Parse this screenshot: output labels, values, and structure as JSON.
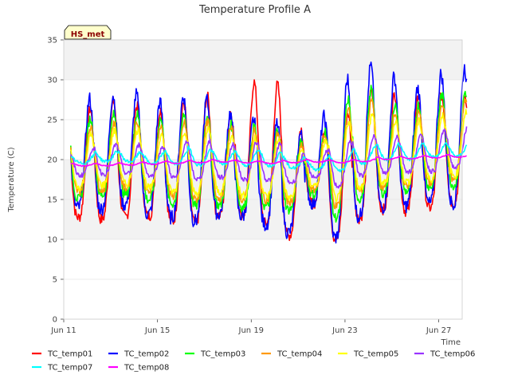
{
  "chart_data": {
    "type": "line",
    "title": "Temperature Profile A",
    "xlabel": "Time",
    "ylabel": "Temperature (C)",
    "ylim": [
      0,
      35
    ],
    "yticks": [
      0,
      5,
      10,
      15,
      20,
      25,
      30,
      35
    ],
    "x_start": "Jun 11",
    "x_end": "Jun 28",
    "xlim_days": [
      0,
      17
    ],
    "xticks": [
      {
        "label": "Jun 11",
        "day": 0
      },
      {
        "label": "Jun 15",
        "day": 4
      },
      {
        "label": "Jun 19",
        "day": 8
      },
      {
        "label": "Jun 23",
        "day": 12
      },
      {
        "label": "Jun 27",
        "day": 16
      }
    ],
    "grid": "horizontal bands",
    "legend_position": "bottom",
    "annotation": "HS_met",
    "daily_mean_ranges": {
      "days": [
        "Jun 11",
        "Jun 12",
        "Jun 13",
        "Jun 14",
        "Jun 15",
        "Jun 16",
        "Jun 17",
        "Jun 18",
        "Jun 19",
        "Jun 20",
        "Jun 21",
        "Jun 22",
        "Jun 23",
        "Jun 24",
        "Jun 25",
        "Jun 26",
        "Jun 27"
      ],
      "day_start": 0.3,
      "TC_temp01_min": [
        12.8,
        12.5,
        12.8,
        13.0,
        12.2,
        12.0,
        13.0,
        13.2,
        12.2,
        10.0,
        15.0,
        9.8,
        12.5,
        13.8,
        13.5,
        13.9,
        14.5
      ],
      "TC_temp01_max": [
        26.0,
        27.5,
        27.0,
        26.0,
        26.5,
        29.0,
        25.0,
        29.2,
        31.2,
        24.0,
        23.5,
        25.0,
        28.5,
        28.5,
        27.5,
        28.0,
        28.0
      ],
      "TC_temp02_min": [
        14.0,
        13.8,
        14.5,
        13.2,
        12.8,
        12.2,
        13.2,
        13.0,
        12.0,
        10.5,
        15.0,
        10.0,
        12.8,
        14.0,
        14.2,
        14.5,
        14.6
      ],
      "TC_temp02_max": [
        27.5,
        28.0,
        28.5,
        27.0,
        28.0,
        28.0,
        26.0,
        25.0,
        25.0,
        23.0,
        24.0,
        29.5,
        32.0,
        31.0,
        28.5,
        30.5,
        31.5
      ],
      "TC_temp03_min": [
        15.0,
        15.5,
        15.8,
        15.0,
        14.5,
        14.2,
        14.3,
        14.0,
        14.2,
        13.5,
        16.0,
        12.5,
        15.0,
        15.8,
        16.0,
        16.5,
        16.8
      ],
      "TC_temp03_max": [
        25.0,
        25.5,
        26.0,
        25.0,
        25.5,
        26.0,
        24.5,
        24.0,
        24.5,
        22.0,
        22.5,
        27.0,
        29.5,
        27.0,
        26.5,
        28.0,
        28.5
      ],
      "TC_temp04_min": [
        16.0,
        16.2,
        16.5,
        16.0,
        15.5,
        15.0,
        15.2,
        15.0,
        15.0,
        14.5,
        16.5,
        14.0,
        16.0,
        16.5,
        16.8,
        17.0,
        17.5
      ],
      "TC_temp04_max": [
        24.0,
        24.5,
        25.0,
        24.0,
        24.5,
        25.0,
        24.0,
        23.5,
        24.0,
        21.5,
        22.0,
        26.0,
        28.0,
        26.0,
        25.5,
        27.0,
        27.5
      ],
      "TC_temp05_min": [
        16.5,
        16.8,
        17.0,
        16.5,
        16.0,
        15.8,
        16.0,
        15.5,
        15.5,
        15.0,
        17.0,
        15.0,
        16.5,
        17.0,
        17.2,
        17.5,
        18.0
      ],
      "TC_temp05_max": [
        23.0,
        23.5,
        24.0,
        23.0,
        23.5,
        24.0,
        23.0,
        22.5,
        23.0,
        21.0,
        21.5,
        24.5,
        26.0,
        25.0,
        24.5,
        25.5,
        26.0
      ],
      "TC_temp06_min": [
        18.0,
        18.2,
        18.3,
        18.0,
        17.8,
        17.5,
        17.8,
        17.5,
        17.5,
        17.0,
        18.0,
        16.5,
        18.0,
        18.3,
        18.5,
        18.5,
        19.0
      ],
      "TC_temp06_max": [
        21.0,
        21.8,
        22.0,
        21.5,
        22.0,
        22.5,
        21.8,
        22.0,
        22.5,
        20.5,
        20.5,
        22.0,
        23.0,
        23.0,
        22.8,
        23.5,
        24.0
      ],
      "TC_temp07_min": [
        19.5,
        19.8,
        19.8,
        19.5,
        19.5,
        19.3,
        19.5,
        19.3,
        19.3,
        19.0,
        18.8,
        18.5,
        19.5,
        20.0,
        20.0,
        20.3,
        20.5
      ],
      "TC_temp07_max": [
        20.2,
        21.0,
        21.0,
        20.8,
        21.0,
        21.5,
        21.0,
        21.0,
        21.3,
        20.5,
        20.0,
        20.5,
        21.5,
        22.0,
        21.8,
        22.0,
        22.0
      ],
      "TC_temp08_min": [
        19.2,
        19.2,
        19.3,
        19.4,
        19.5,
        19.6,
        19.7,
        19.6,
        19.5,
        19.6,
        19.7,
        19.6,
        19.7,
        20.0,
        20.1,
        20.2,
        20.3
      ],
      "TC_temp08_max": [
        19.5,
        19.5,
        19.6,
        19.7,
        19.8,
        19.9,
        20.0,
        19.9,
        19.8,
        19.9,
        20.0,
        19.9,
        20.0,
        20.3,
        20.4,
        20.5,
        20.6
      ]
    },
    "series": [
      {
        "name": "TC_temp01",
        "color": "#ff0000",
        "phase": 0.62,
        "jitter": 0.7
      },
      {
        "name": "TC_temp02",
        "color": "#0000ff",
        "phase": 0.6,
        "jitter": 0.9
      },
      {
        "name": "TC_temp03",
        "color": "#00ff00",
        "phase": 0.63,
        "jitter": 0.6
      },
      {
        "name": "TC_temp04",
        "color": "#ff9900",
        "phase": 0.64,
        "jitter": 0.5
      },
      {
        "name": "TC_temp05",
        "color": "#ffff00",
        "phase": 0.66,
        "jitter": 0.5
      },
      {
        "name": "TC_temp06",
        "color": "#9933ff",
        "phase": 0.72,
        "jitter": 0.3
      },
      {
        "name": "TC_temp07",
        "color": "#00ffff",
        "phase": 0.8,
        "jitter": 0.2
      },
      {
        "name": "TC_temp08",
        "color": "#ff00ff",
        "phase": 0.85,
        "jitter": 0.05
      }
    ]
  }
}
